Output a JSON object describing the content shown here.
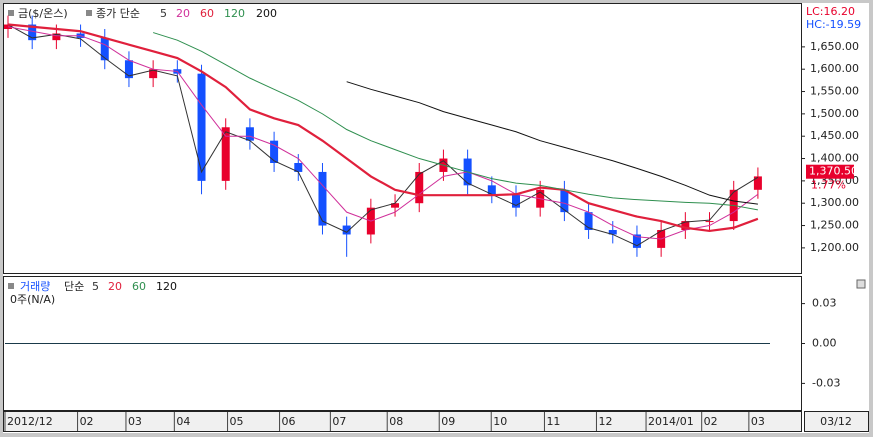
{
  "chart_data": [
    {
      "type": "candlestick",
      "title": "금($/온스)",
      "subtitle": "종가 단순",
      "x": [
        0,
        2,
        4,
        6,
        8,
        10,
        12,
        14,
        16,
        18,
        20,
        22,
        24,
        26,
        28,
        30,
        32,
        34,
        36,
        38,
        40,
        42,
        44,
        46,
        48,
        50,
        52,
        54,
        56,
        58,
        60,
        62
      ],
      "open": [
        1690,
        1700,
        1665,
        1680,
        1670,
        1620,
        1580,
        1600,
        1590,
        1350,
        1470,
        1440,
        1390,
        1370,
        1250,
        1230,
        1290,
        1300,
        1370,
        1400,
        1340,
        1320,
        1290,
        1330,
        1280,
        1240,
        1230,
        1200,
        1240,
        1260,
        1260,
        1330
      ],
      "high": [
        1720,
        1720,
        1700,
        1700,
        1690,
        1640,
        1620,
        1620,
        1610,
        1490,
        1490,
        1460,
        1410,
        1390,
        1270,
        1310,
        1320,
        1390,
        1420,
        1420,
        1360,
        1340,
        1350,
        1350,
        1300,
        1260,
        1250,
        1260,
        1280,
        1280,
        1350,
        1380
      ],
      "low": [
        1670,
        1645,
        1645,
        1650,
        1600,
        1560,
        1560,
        1570,
        1320,
        1330,
        1420,
        1370,
        1350,
        1230,
        1180,
        1210,
        1270,
        1280,
        1350,
        1320,
        1300,
        1270,
        1270,
        1260,
        1220,
        1210,
        1180,
        1180,
        1220,
        1240,
        1240,
        1310
      ],
      "close": [
        1700,
        1665,
        1680,
        1670,
        1620,
        1580,
        1600,
        1590,
        1350,
        1470,
        1440,
        1390,
        1370,
        1250,
        1230,
        1290,
        1300,
        1370,
        1400,
        1340,
        1320,
        1290,
        1330,
        1280,
        1240,
        1230,
        1200,
        1240,
        1260,
        1260,
        1330,
        1360
      ],
      "up_color": "#e8002c",
      "down_color": "#1450ff",
      "series": [
        {
          "name": "5",
          "color": "#333333",
          "values": [
            1700,
            1670,
            1678,
            1668,
            1625,
            1585,
            1598,
            1585,
            1370,
            1460,
            1440,
            1395,
            1370,
            1260,
            1235,
            1285,
            1300,
            1365,
            1395,
            1345,
            1320,
            1295,
            1325,
            1285,
            1245,
            1230,
            1205,
            1238,
            1258,
            1262,
            1325,
            1358
          ]
        },
        {
          "name": "20",
          "color": "#d0309a",
          "values": [
            1695,
            1685,
            1675,
            1675,
            1655,
            1620,
            1600,
            1595,
            1520,
            1450,
            1450,
            1430,
            1400,
            1340,
            1280,
            1260,
            1280,
            1320,
            1360,
            1370,
            1350,
            1320,
            1310,
            1300,
            1280,
            1250,
            1225,
            1220,
            1240,
            1250,
            1280,
            1320
          ]
        },
        {
          "name": "60",
          "color": "#e0203c",
          "values": [
            1700,
            1695,
            1690,
            1685,
            1670,
            1655,
            1640,
            1625,
            1595,
            1560,
            1510,
            1490,
            1475,
            1440,
            1400,
            1360,
            1330,
            1318,
            1318,
            1318,
            1318,
            1320,
            1335,
            1330,
            1300,
            1285,
            1270,
            1260,
            1245,
            1238,
            1245,
            1265
          ]
        },
        {
          "name": "120",
          "color": "#2f8f4f",
          "values": [
            null,
            null,
            null,
            null,
            null,
            null,
            1682,
            1665,
            1640,
            1610,
            1580,
            1555,
            1530,
            1500,
            1465,
            1440,
            1420,
            1400,
            1385,
            1370,
            1355,
            1345,
            1340,
            1330,
            1320,
            1312,
            1308,
            1305,
            1302,
            1300,
            1295,
            1285
          ]
        },
        {
          "name": "200",
          "color": "#111111",
          "values": [
            null,
            null,
            null,
            null,
            null,
            null,
            null,
            null,
            null,
            null,
            null,
            null,
            null,
            null,
            1572,
            1555,
            1540,
            1525,
            1505,
            1490,
            1475,
            1460,
            1440,
            1425,
            1410,
            1395,
            1378,
            1360,
            1340,
            1318,
            1305,
            1298
          ]
        }
      ],
      "ylim": [
        1146,
        1737
      ],
      "yticks": [
        {
          "value": 1650,
          "label": "1,650.00"
        },
        {
          "value": 1600,
          "label": "1,600.00"
        },
        {
          "value": 1550,
          "label": "1,550.00"
        },
        {
          "value": 1500,
          "label": "1,500.00"
        },
        {
          "value": 1450,
          "label": "1,450.00"
        },
        {
          "value": 1400,
          "label": "1,400.00"
        },
        {
          "value": 1350,
          "label": "1,350.00"
        },
        {
          "value": 1300,
          "label": "1,300.00"
        },
        {
          "value": 1250,
          "label": "1,250.00"
        },
        {
          "value": 1200,
          "label": "1,200.00"
        }
      ],
      "xlim": [
        0,
        63
      ],
      "xticks": [
        {
          "value": 0,
          "label": "2012/12"
        },
        {
          "value": 6,
          "label": "02"
        },
        {
          "value": 10,
          "label": "03"
        },
        {
          "value": 14,
          "label": "04"
        },
        {
          "value": 18.4,
          "label": "05"
        },
        {
          "value": 22.7,
          "label": "06"
        },
        {
          "value": 26.9,
          "label": "07"
        },
        {
          "value": 31.6,
          "label": "08"
        },
        {
          "value": 35.9,
          "label": "09"
        },
        {
          "value": 40.2,
          "label": "10"
        },
        {
          "value": 44.6,
          "label": "11"
        },
        {
          "value": 48.9,
          "label": "12"
        },
        {
          "value": 53,
          "label": "2014/01"
        },
        {
          "value": 57.6,
          "label": "02"
        },
        {
          "value": 61.5,
          "label": "03"
        }
      ],
      "last_price": {
        "value": 1370.5,
        "label": "1,370.50"
      },
      "change_label": "1.77%",
      "lc_label": "LC:16.20",
      "hc_label": "HC:-19.59",
      "date_label": "03/12"
    },
    {
      "type": "line",
      "title": "거래량",
      "subtitle": "단순",
      "note": "0주(N/A)",
      "series": [
        {
          "name": "5",
          "color": "#333333"
        },
        {
          "name": "20",
          "color": "#e0203c"
        },
        {
          "name": "60",
          "color": "#2f8f4f"
        },
        {
          "name": "120",
          "color": "#111111"
        }
      ],
      "ylim": [
        -0.05,
        0.05
      ],
      "yticks": [
        {
          "value": 0.03,
          "label": "0.03"
        },
        {
          "value": 0,
          "label": "0.00"
        },
        {
          "value": -0.03,
          "label": "-0.03"
        }
      ]
    }
  ]
}
